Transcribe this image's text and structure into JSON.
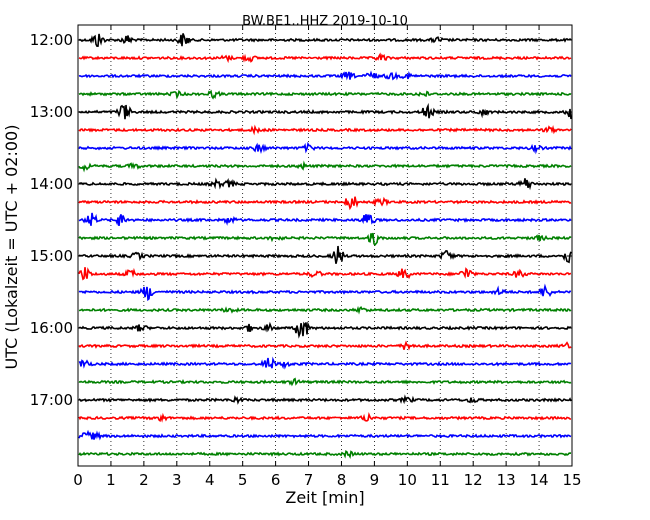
{
  "chart_data": {
    "type": "line",
    "title": "BW.BE1..HHZ 2019-10-10",
    "xlabel": "Zeit  [min]",
    "ylabel": "UTC (Lokalzeit = UTC + 02:00)",
    "xlim": [
      0,
      15
    ],
    "x_ticks": [
      "0",
      "1",
      "2",
      "3",
      "4",
      "5",
      "6",
      "7",
      "8",
      "9",
      "10",
      "11",
      "12",
      "13",
      "14",
      "15"
    ],
    "y_ticks": [
      "12:00",
      "13:00",
      "14:00",
      "15:00",
      "16:00",
      "17:00"
    ],
    "grid": "vertical-dotted",
    "trace_colors": [
      "#000000",
      "#ff0000",
      "#0000ff",
      "#008000"
    ],
    "series": [
      {
        "start": "12:00",
        "events": [
          [
            0.6,
            1.0
          ],
          [
            1.5,
            0.6
          ],
          [
            3.2,
            0.9
          ],
          [
            10.9,
            0.3
          ]
        ]
      },
      {
        "start": "12:15",
        "events": [
          [
            4.5,
            0.3
          ],
          [
            5.2,
            0.4
          ],
          [
            9.2,
            0.4
          ]
        ]
      },
      {
        "start": "12:30",
        "events": [
          [
            8.2,
            0.5
          ],
          [
            8.9,
            0.5
          ],
          [
            9.5,
            0.4
          ],
          [
            10.0,
            0.3
          ]
        ]
      },
      {
        "start": "12:45",
        "events": [
          [
            3.0,
            0.3
          ],
          [
            4.1,
            0.4
          ],
          [
            10.5,
            0.3
          ]
        ]
      },
      {
        "start": "13:00",
        "events": [
          [
            1.4,
            1.2
          ],
          [
            10.6,
            0.9
          ],
          [
            12.3,
            0.4
          ],
          [
            15.0,
            0.9
          ]
        ]
      },
      {
        "start": "13:15",
        "events": [
          [
            5.4,
            0.3
          ],
          [
            14.3,
            0.3
          ]
        ]
      },
      {
        "start": "13:30",
        "events": [
          [
            5.5,
            0.5
          ],
          [
            7.0,
            0.4
          ],
          [
            13.9,
            0.3
          ]
        ]
      },
      {
        "start": "13:45",
        "events": [
          [
            0.2,
            0.4
          ],
          [
            1.7,
            0.3
          ],
          [
            6.8,
            0.3
          ]
        ]
      },
      {
        "start": "14:00",
        "events": [
          [
            4.2,
            0.4
          ],
          [
            4.6,
            0.4
          ],
          [
            13.6,
            0.8
          ]
        ]
      },
      {
        "start": "14:15",
        "events": [
          [
            8.3,
            1.0
          ],
          [
            9.2,
            0.4
          ]
        ]
      },
      {
        "start": "14:30",
        "events": [
          [
            0.4,
            0.9
          ],
          [
            1.3,
            0.8
          ],
          [
            8.8,
            1.1
          ],
          [
            4.6,
            0.4
          ]
        ]
      },
      {
        "start": "14:45",
        "events": [
          [
            6.0,
            0.3
          ],
          [
            9.0,
            0.9
          ],
          [
            14.0,
            0.3
          ]
        ]
      },
      {
        "start": "15:00",
        "events": [
          [
            1.8,
            0.4
          ],
          [
            7.9,
            1.3
          ],
          [
            11.2,
            0.7
          ],
          [
            14.9,
            0.9
          ]
        ]
      },
      {
        "start": "15:15",
        "events": [
          [
            0.2,
            0.9
          ],
          [
            1.6,
            0.5
          ],
          [
            7.2,
            0.4
          ],
          [
            9.9,
            0.7
          ],
          [
            11.8,
            0.8
          ],
          [
            13.4,
            0.5
          ]
        ]
      },
      {
        "start": "15:30",
        "events": [
          [
            2.1,
            1.0
          ],
          [
            12.8,
            0.4
          ],
          [
            14.2,
            0.8
          ]
        ]
      },
      {
        "start": "15:45",
        "events": [
          [
            4.6,
            0.3
          ],
          [
            8.6,
            0.3
          ]
        ]
      },
      {
        "start": "16:00",
        "events": [
          [
            1.9,
            0.4
          ],
          [
            5.2,
            0.4
          ],
          [
            5.8,
            0.4
          ],
          [
            6.8,
            1.8
          ]
        ]
      },
      {
        "start": "16:15",
        "events": [
          [
            10.0,
            0.6
          ],
          [
            14.9,
            0.4
          ]
        ]
      },
      {
        "start": "16:30",
        "events": [
          [
            0.2,
            0.6
          ],
          [
            5.8,
            0.9
          ],
          [
            6.3,
            0.3
          ]
        ]
      },
      {
        "start": "16:45",
        "events": [
          [
            6.6,
            0.3
          ]
        ]
      },
      {
        "start": "17:00",
        "events": [
          [
            4.8,
            0.3
          ],
          [
            10.0,
            0.3
          ],
          [
            12.0,
            0.3
          ]
        ]
      },
      {
        "start": "17:15",
        "events": [
          [
            2.5,
            0.4
          ],
          [
            8.8,
            0.5
          ]
        ]
      },
      {
        "start": "17:30",
        "events": [
          [
            0.2,
            0.5
          ],
          [
            0.5,
            0.4
          ]
        ]
      },
      {
        "start": "17:45",
        "events": [
          [
            8.2,
            0.3
          ]
        ]
      }
    ]
  }
}
